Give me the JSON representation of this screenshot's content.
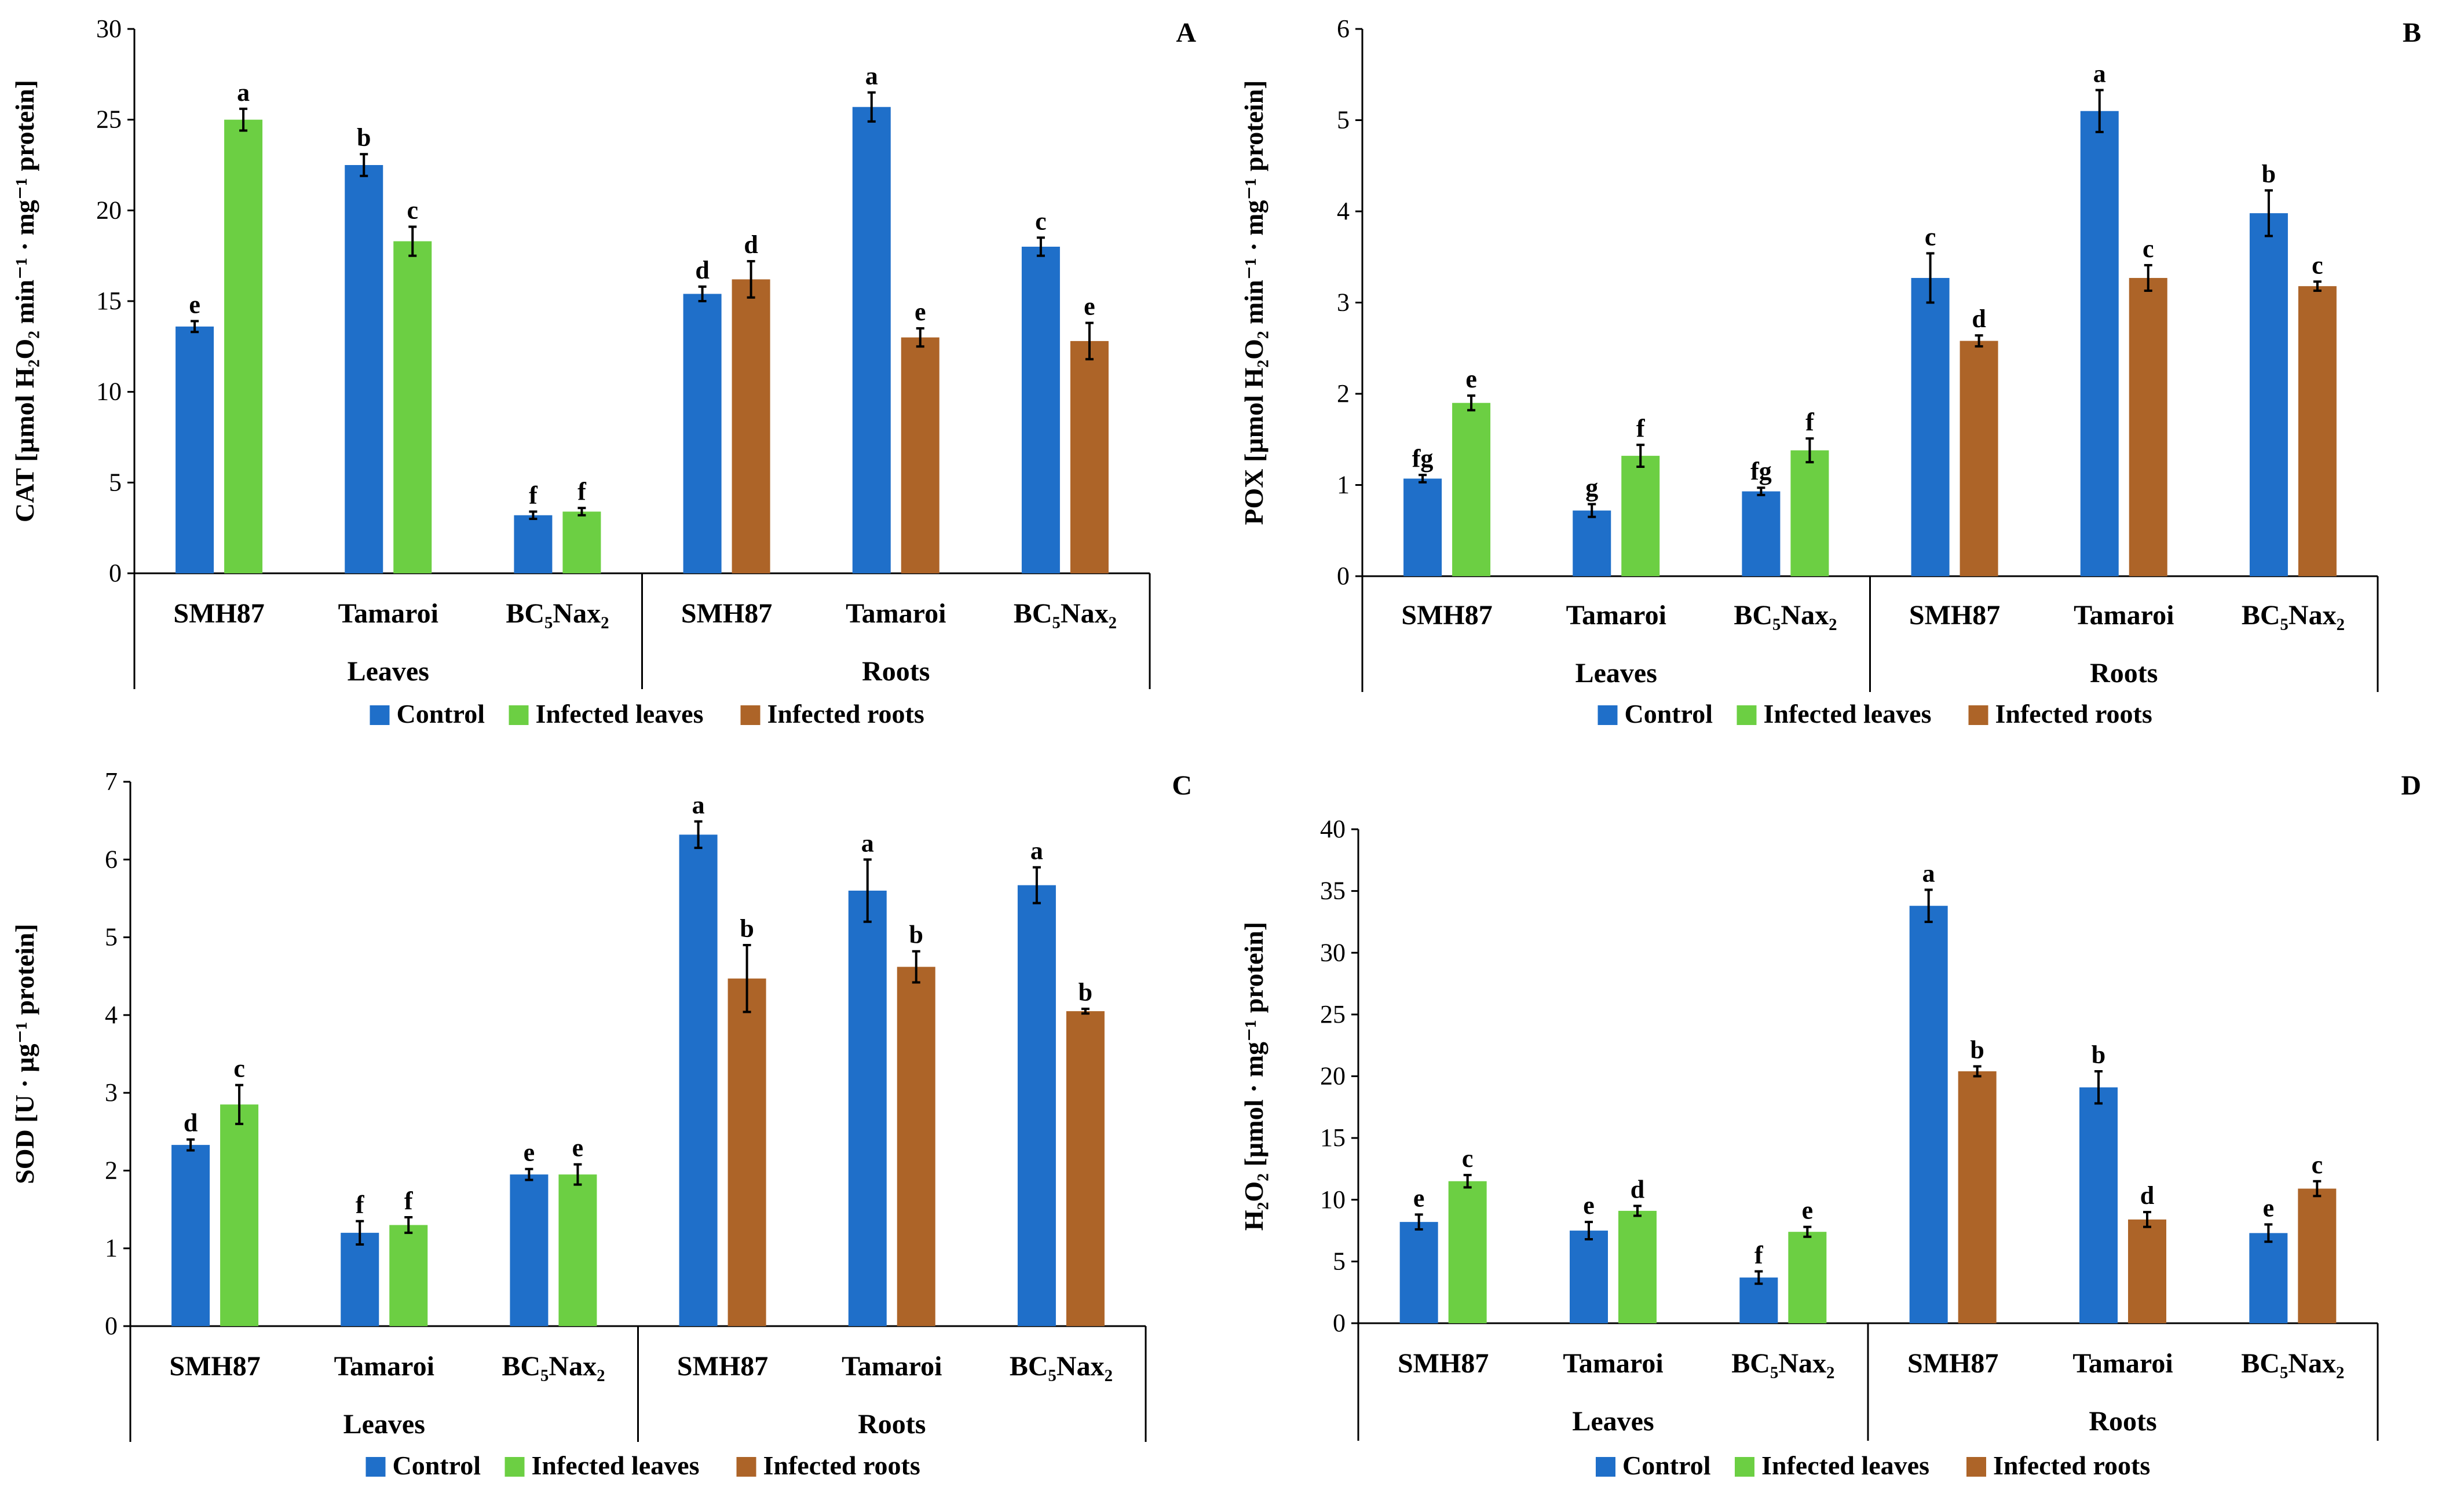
{
  "colors": {
    "control": "#1f6fc9",
    "infected_leaves": "#6ccf43",
    "infected_roots": "#ad6428",
    "axis": "#000000"
  },
  "legend": [
    {
      "key": "control",
      "label": "Control"
    },
    {
      "key": "infected_leaves",
      "label": "Infected leaves"
    },
    {
      "key": "infected_roots",
      "label": "Infected roots"
    }
  ],
  "chart_data": [
    {
      "panel": "A",
      "type": "bar",
      "ylabel": "CAT [µmol H₂O₂ min⁻¹ · mg⁻¹ protein]",
      "ylim": [
        0,
        30
      ],
      "yticks": [
        0,
        5,
        10,
        15,
        20,
        25,
        30
      ],
      "groups": [
        {
          "label": "Leaves",
          "categories": [
            {
              "label": "SMH87",
              "bars": [
                {
                  "series": "control",
                  "value": 13.6,
                  "err": 0.3,
                  "letter": "e"
                },
                {
                  "series": "infected_leaves",
                  "value": 25.0,
                  "err": 0.6,
                  "letter": "a"
                }
              ]
            },
            {
              "label": "Tamaroi",
              "bars": [
                {
                  "series": "control",
                  "value": 22.5,
                  "err": 0.6,
                  "letter": "b"
                },
                {
                  "series": "infected_leaves",
                  "value": 18.3,
                  "err": 0.8,
                  "letter": "c"
                }
              ]
            },
            {
              "label": "BC₅Nax₂",
              "bars": [
                {
                  "series": "control",
                  "value": 3.2,
                  "err": 0.2,
                  "letter": "f"
                },
                {
                  "series": "infected_leaves",
                  "value": 3.4,
                  "err": 0.2,
                  "letter": "f"
                }
              ]
            }
          ]
        },
        {
          "label": "Roots",
          "categories": [
            {
              "label": "SMH87",
              "bars": [
                {
                  "series": "control",
                  "value": 15.4,
                  "err": 0.4,
                  "letter": "d"
                },
                {
                  "series": "infected_roots",
                  "value": 16.2,
                  "err": 1.0,
                  "letter": "d"
                }
              ]
            },
            {
              "label": "Tamaroi",
              "bars": [
                {
                  "series": "control",
                  "value": 25.7,
                  "err": 0.8,
                  "letter": "a"
                },
                {
                  "series": "infected_roots",
                  "value": 13.0,
                  "err": 0.5,
                  "letter": "e"
                }
              ]
            },
            {
              "label": "BC₅Nax₂",
              "bars": [
                {
                  "series": "control",
                  "value": 18.0,
                  "err": 0.5,
                  "letter": "c"
                },
                {
                  "series": "infected_roots",
                  "value": 12.8,
                  "err": 1.0,
                  "letter": "e"
                }
              ]
            }
          ]
        }
      ]
    },
    {
      "panel": "B",
      "type": "bar",
      "ylabel": "POX [µmol H₂O₂ min⁻¹ · mg⁻¹ protein]",
      "ylim": [
        0,
        6
      ],
      "yticks": [
        0,
        1,
        2,
        3,
        4,
        5,
        6
      ],
      "groups": [
        {
          "label": "Leaves",
          "categories": [
            {
              "label": "SMH87",
              "bars": [
                {
                  "series": "control",
                  "value": 1.07,
                  "err": 0.04,
                  "letter": "fg"
                },
                {
                  "series": "infected_leaves",
                  "value": 1.9,
                  "err": 0.08,
                  "letter": "e"
                }
              ]
            },
            {
              "label": "Tamaroi",
              "bars": [
                {
                  "series": "control",
                  "value": 0.72,
                  "err": 0.07,
                  "letter": "g"
                },
                {
                  "series": "infected_leaves",
                  "value": 1.32,
                  "err": 0.12,
                  "letter": "f"
                }
              ]
            },
            {
              "label": "BC₅Nax₂",
              "bars": [
                {
                  "series": "control",
                  "value": 0.93,
                  "err": 0.04,
                  "letter": "fg"
                },
                {
                  "series": "infected_leaves",
                  "value": 1.38,
                  "err": 0.13,
                  "letter": "f"
                }
              ]
            }
          ]
        },
        {
          "label": "Roots",
          "categories": [
            {
              "label": "SMH87",
              "bars": [
                {
                  "series": "control",
                  "value": 3.27,
                  "err": 0.27,
                  "letter": "c"
                },
                {
                  "series": "infected_roots",
                  "value": 2.58,
                  "err": 0.06,
                  "letter": "d"
                }
              ]
            },
            {
              "label": "Tamaroi",
              "bars": [
                {
                  "series": "control",
                  "value": 5.1,
                  "err": 0.23,
                  "letter": "a"
                },
                {
                  "series": "infected_roots",
                  "value": 3.27,
                  "err": 0.14,
                  "letter": "c"
                }
              ]
            },
            {
              "label": "BC₅Nax₂",
              "bars": [
                {
                  "series": "control",
                  "value": 3.98,
                  "err": 0.25,
                  "letter": "b"
                },
                {
                  "series": "infected_roots",
                  "value": 3.18,
                  "err": 0.05,
                  "letter": "c"
                }
              ]
            }
          ]
        }
      ]
    },
    {
      "panel": "C",
      "type": "bar",
      "ylabel": "SOD [U · µg⁻¹ protein]",
      "ylim": [
        0,
        7
      ],
      "yticks": [
        0,
        1,
        2,
        3,
        4,
        5,
        6,
        7
      ],
      "groups": [
        {
          "label": "Leaves",
          "categories": [
            {
              "label": "SMH87",
              "bars": [
                {
                  "series": "control",
                  "value": 2.33,
                  "err": 0.07,
                  "letter": "d"
                },
                {
                  "series": "infected_leaves",
                  "value": 2.85,
                  "err": 0.25,
                  "letter": "c"
                }
              ]
            },
            {
              "label": "Tamaroi",
              "bars": [
                {
                  "series": "control",
                  "value": 1.2,
                  "err": 0.15,
                  "letter": "f"
                },
                {
                  "series": "infected_leaves",
                  "value": 1.3,
                  "err": 0.1,
                  "letter": "f"
                }
              ]
            },
            {
              "label": "BC₅Nax₂",
              "bars": [
                {
                  "series": "control",
                  "value": 1.95,
                  "err": 0.07,
                  "letter": "e"
                },
                {
                  "series": "infected_leaves",
                  "value": 1.95,
                  "err": 0.13,
                  "letter": "e"
                }
              ]
            }
          ]
        },
        {
          "label": "Roots",
          "categories": [
            {
              "label": "SMH87",
              "bars": [
                {
                  "series": "control",
                  "value": 6.32,
                  "err": 0.17,
                  "letter": "a"
                },
                {
                  "series": "infected_roots",
                  "value": 4.47,
                  "err": 0.43,
                  "letter": "b"
                }
              ]
            },
            {
              "label": "Tamaroi",
              "bars": [
                {
                  "series": "control",
                  "value": 5.6,
                  "err": 0.4,
                  "letter": "a"
                },
                {
                  "series": "infected_roots",
                  "value": 4.62,
                  "err": 0.2,
                  "letter": "b"
                }
              ]
            },
            {
              "label": "BC₅Nax₂",
              "bars": [
                {
                  "series": "control",
                  "value": 5.67,
                  "err": 0.23,
                  "letter": "a"
                },
                {
                  "series": "infected_roots",
                  "value": 4.05,
                  "err": 0.03,
                  "letter": "b"
                }
              ]
            }
          ]
        }
      ]
    },
    {
      "panel": "D",
      "type": "bar",
      "ylabel": "H₂O₂ [µmol · mg⁻¹ protein]",
      "ylim": [
        0,
        40
      ],
      "yticks": [
        0,
        5,
        10,
        15,
        20,
        25,
        30,
        35,
        40
      ],
      "groups": [
        {
          "label": "Leaves",
          "categories": [
            {
              "label": "SMH87",
              "bars": [
                {
                  "series": "control",
                  "value": 8.2,
                  "err": 0.6,
                  "letter": "e"
                },
                {
                  "series": "infected_leaves",
                  "value": 11.5,
                  "err": 0.5,
                  "letter": "c"
                }
              ]
            },
            {
              "label": "Tamaroi",
              "bars": [
                {
                  "series": "control",
                  "value": 7.5,
                  "err": 0.7,
                  "letter": "e"
                },
                {
                  "series": "infected_leaves",
                  "value": 9.1,
                  "err": 0.4,
                  "letter": "d"
                }
              ]
            },
            {
              "label": "BC₅Nax₂",
              "bars": [
                {
                  "series": "control",
                  "value": 3.7,
                  "err": 0.5,
                  "letter": "f"
                },
                {
                  "series": "infected_leaves",
                  "value": 7.4,
                  "err": 0.4,
                  "letter": "e"
                }
              ]
            }
          ]
        },
        {
          "label": "Roots",
          "categories": [
            {
              "label": "SMH87",
              "bars": [
                {
                  "series": "control",
                  "value": 33.8,
                  "err": 1.3,
                  "letter": "a"
                },
                {
                  "series": "infected_roots",
                  "value": 20.4,
                  "err": 0.4,
                  "letter": "b"
                }
              ]
            },
            {
              "label": "Tamaroi",
              "bars": [
                {
                  "series": "control",
                  "value": 19.1,
                  "err": 1.3,
                  "letter": "b"
                },
                {
                  "series": "infected_roots",
                  "value": 8.4,
                  "err": 0.6,
                  "letter": "d"
                }
              ]
            },
            {
              "label": "BC₅Nax₂",
              "bars": [
                {
                  "series": "control",
                  "value": 7.3,
                  "err": 0.7,
                  "letter": "e"
                },
                {
                  "series": "infected_roots",
                  "value": 10.9,
                  "err": 0.6,
                  "letter": "c"
                }
              ]
            }
          ]
        }
      ]
    }
  ]
}
